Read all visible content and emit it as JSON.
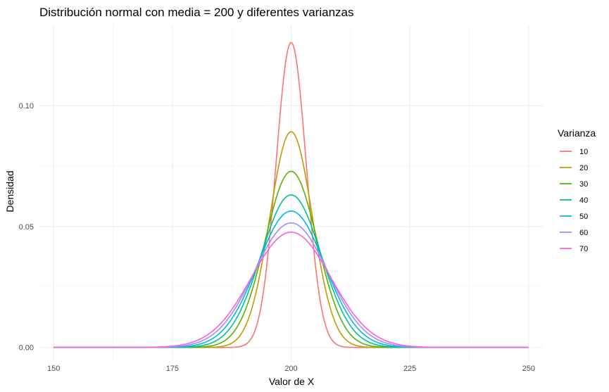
{
  "chart_data": {
    "type": "line",
    "title": "Distribución normal con media = 200 y diferentes varianzas",
    "xlabel": "Valor de X",
    "ylabel": "Densidad",
    "xlim": [
      147,
      253
    ],
    "ylim": [
      -0.0062,
      0.1335
    ],
    "x_ticks": [
      150,
      175,
      200,
      225,
      250
    ],
    "x_tick_labels": [
      "150",
      "175",
      "200",
      "225",
      "250"
    ],
    "y_ticks": [
      0,
      0.05,
      0.1
    ],
    "y_tick_labels": [
      "0.00",
      "0.05",
      "0.10"
    ],
    "grid": true,
    "legend_title": "Varianza",
    "legend_position": "right",
    "mean": 200,
    "x_range": [
      150,
      250
    ],
    "series": [
      {
        "name": "10",
        "variance": 10,
        "color": "#F8766D",
        "peak": 0.126
      },
      {
        "name": "20",
        "variance": 20,
        "color": "#C49A00",
        "peak": 0.089
      },
      {
        "name": "30",
        "variance": 30,
        "color": "#53B400",
        "peak": 0.073
      },
      {
        "name": "40",
        "variance": 40,
        "color": "#00C094",
        "peak": 0.063
      },
      {
        "name": "50",
        "variance": 50,
        "color": "#00B6EB",
        "peak": 0.056
      },
      {
        "name": "60",
        "variance": 60,
        "color": "#A58AFF",
        "peak": 0.052
      },
      {
        "name": "70",
        "variance": 70,
        "color": "#FB61D7",
        "peak": 0.048
      }
    ]
  }
}
